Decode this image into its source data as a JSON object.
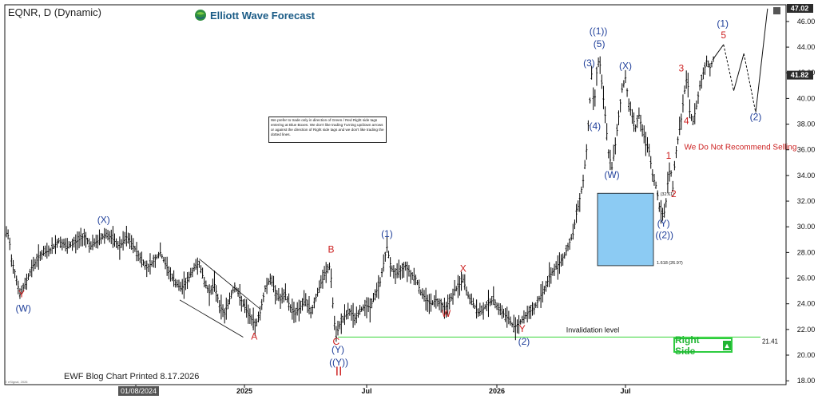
{
  "header": {
    "ticker": "EQNR, D (Dynamic)",
    "brand": "Elliott Wave Forecast"
  },
  "note": "We prefer to trade only in direction of Green / Red Right side tags entering at Blue Boxes. We don't like trading Turning up/down arrows or against the direction of Right side tags and we don't like trading the dotted lines.",
  "right_side_label": "Right Side",
  "printed": "EWF Blog Chart Printed 8.17.2026",
  "esignal": "© eSignal, 2026",
  "date_badge": "01/08/2024",
  "colors": {
    "blue_label": "#1f3f9a",
    "red_label": "#cc1f1f",
    "green_line": "#3ad63a",
    "blue_box": "#8ccbf3",
    "candle": "#000000"
  },
  "chart_data": {
    "type": "line",
    "title": "EQNR, D (Dynamic)",
    "xlabel": "",
    "ylabel": "",
    "x_ticks": [
      "Jul",
      "2025",
      "Jul",
      "2026",
      "Jul"
    ],
    "y_ticks": [
      18.0,
      20.0,
      22.0,
      24.0,
      26.0,
      28.0,
      30.0,
      32.0,
      34.0,
      36.0,
      38.0,
      40.0,
      42.0,
      44.0,
      46.0
    ],
    "ylim": [
      17.7,
      47.3
    ],
    "price_tags": [
      {
        "value": 47.02,
        "label": "47.02"
      },
      {
        "value": 41.82,
        "label": "41.82"
      }
    ],
    "series": [
      {
        "values": [
          {
            "t": 0,
            "v": 29.5
          },
          {
            "t": 3,
            "v": 29.2
          },
          {
            "t": 6,
            "v": 27.5
          },
          {
            "t": 10,
            "v": 26.5
          },
          {
            "t": 16,
            "v": 24.7
          },
          {
            "t": 22,
            "v": 25.5
          },
          {
            "t": 30,
            "v": 26.8
          },
          {
            "t": 40,
            "v": 27.8
          },
          {
            "t": 52,
            "v": 28.2
          },
          {
            "t": 62,
            "v": 28.9
          },
          {
            "t": 72,
            "v": 28.4
          },
          {
            "t": 82,
            "v": 28.8
          },
          {
            "t": 92,
            "v": 29.3
          },
          {
            "t": 100,
            "v": 28.5
          },
          {
            "t": 110,
            "v": 29.0
          },
          {
            "t": 118,
            "v": 29.5
          },
          {
            "t": 126,
            "v": 29.0
          },
          {
            "t": 134,
            "v": 28.4
          },
          {
            "t": 142,
            "v": 29.2
          },
          {
            "t": 150,
            "v": 28.5
          },
          {
            "t": 158,
            "v": 27.6
          },
          {
            "t": 166,
            "v": 26.8
          },
          {
            "t": 174,
            "v": 27.3
          },
          {
            "t": 182,
            "v": 28.0
          },
          {
            "t": 190,
            "v": 26.8
          },
          {
            "t": 198,
            "v": 25.8
          },
          {
            "t": 206,
            "v": 25.2
          },
          {
            "t": 214,
            "v": 25.8
          },
          {
            "t": 222,
            "v": 26.8
          },
          {
            "t": 228,
            "v": 27.2
          },
          {
            "t": 234,
            "v": 25.7
          },
          {
            "t": 240,
            "v": 24.9
          },
          {
            "t": 246,
            "v": 25.5
          },
          {
            "t": 252,
            "v": 23.9
          },
          {
            "t": 258,
            "v": 23.2
          },
          {
            "t": 264,
            "v": 24.4
          },
          {
            "t": 270,
            "v": 25.4
          },
          {
            "t": 276,
            "v": 24.5
          },
          {
            "t": 282,
            "v": 23.7
          },
          {
            "t": 288,
            "v": 23.0
          },
          {
            "t": 294,
            "v": 22.3
          },
          {
            "t": 300,
            "v": 23.3
          },
          {
            "t": 306,
            "v": 25.2
          },
          {
            "t": 312,
            "v": 26.0
          },
          {
            "t": 318,
            "v": 25.0
          },
          {
            "t": 324,
            "v": 24.3
          },
          {
            "t": 330,
            "v": 24.7
          },
          {
            "t": 336,
            "v": 23.7
          },
          {
            "t": 342,
            "v": 23.3
          },
          {
            "t": 348,
            "v": 23.8
          },
          {
            "t": 354,
            "v": 24.3
          },
          {
            "t": 360,
            "v": 23.3
          },
          {
            "t": 366,
            "v": 24.5
          },
          {
            "t": 372,
            "v": 25.6
          },
          {
            "t": 378,
            "v": 26.5
          },
          {
            "t": 383,
            "v": 27.0
          },
          {
            "t": 387,
            "v": 23.0
          },
          {
            "t": 390,
            "v": 21.4
          },
          {
            "t": 394,
            "v": 22.4
          },
          {
            "t": 400,
            "v": 23.0
          },
          {
            "t": 406,
            "v": 23.4
          },
          {
            "t": 412,
            "v": 22.9
          },
          {
            "t": 418,
            "v": 23.4
          },
          {
            "t": 424,
            "v": 23.9
          },
          {
            "t": 430,
            "v": 23.7
          },
          {
            "t": 436,
            "v": 24.7
          },
          {
            "t": 442,
            "v": 25.7
          },
          {
            "t": 447,
            "v": 27.5
          },
          {
            "t": 450,
            "v": 28.4
          },
          {
            "t": 455,
            "v": 26.8
          },
          {
            "t": 460,
            "v": 26.3
          },
          {
            "t": 466,
            "v": 26.6
          },
          {
            "t": 472,
            "v": 27.0
          },
          {
            "t": 478,
            "v": 26.3
          },
          {
            "t": 484,
            "v": 26.0
          },
          {
            "t": 490,
            "v": 24.9
          },
          {
            "t": 496,
            "v": 24.4
          },
          {
            "t": 502,
            "v": 24.0
          },
          {
            "t": 508,
            "v": 24.3
          },
          {
            "t": 514,
            "v": 24.0
          },
          {
            "t": 518,
            "v": 23.6
          },
          {
            "t": 524,
            "v": 24.2
          },
          {
            "t": 530,
            "v": 25.0
          },
          {
            "t": 536,
            "v": 25.5
          },
          {
            "t": 540,
            "v": 25.9
          },
          {
            "t": 546,
            "v": 24.6
          },
          {
            "t": 552,
            "v": 24.0
          },
          {
            "t": 558,
            "v": 23.3
          },
          {
            "t": 564,
            "v": 23.6
          },
          {
            "t": 570,
            "v": 24.1
          },
          {
            "t": 576,
            "v": 24.3
          },
          {
            "t": 582,
            "v": 23.7
          },
          {
            "t": 588,
            "v": 23.2
          },
          {
            "t": 594,
            "v": 22.8
          },
          {
            "t": 600,
            "v": 22.2
          },
          {
            "t": 606,
            "v": 22.5
          },
          {
            "t": 612,
            "v": 22.9
          },
          {
            "t": 618,
            "v": 23.4
          },
          {
            "t": 624,
            "v": 23.6
          },
          {
            "t": 630,
            "v": 24.4
          },
          {
            "t": 636,
            "v": 25.1
          },
          {
            "t": 642,
            "v": 26.1
          },
          {
            "t": 648,
            "v": 26.7
          },
          {
            "t": 654,
            "v": 27.2
          },
          {
            "t": 660,
            "v": 27.8
          },
          {
            "t": 666,
            "v": 28.8
          },
          {
            "t": 670,
            "v": 29.4
          },
          {
            "t": 674,
            "v": 31.0
          },
          {
            "t": 678,
            "v": 32.2
          },
          {
            "t": 682,
            "v": 33.6
          },
          {
            "t": 686,
            "v": 36.0
          },
          {
            "t": 689,
            "v": 38.8
          },
          {
            "t": 692,
            "v": 41.9
          },
          {
            "t": 695,
            "v": 39.2
          },
          {
            "t": 698,
            "v": 42.0
          },
          {
            "t": 701,
            "v": 43.3
          },
          {
            "t": 704,
            "v": 41.2
          },
          {
            "t": 708,
            "v": 38.7
          },
          {
            "t": 712,
            "v": 35.8
          },
          {
            "t": 716,
            "v": 34.6
          },
          {
            "t": 720,
            "v": 36.4
          },
          {
            "t": 724,
            "v": 38.6
          },
          {
            "t": 728,
            "v": 40.7
          },
          {
            "t": 732,
            "v": 41.6
          },
          {
            "t": 736,
            "v": 39.6
          },
          {
            "t": 740,
            "v": 38.6
          },
          {
            "t": 744,
            "v": 37.8
          },
          {
            "t": 748,
            "v": 38.7
          },
          {
            "t": 752,
            "v": 37.6
          },
          {
            "t": 756,
            "v": 36.4
          },
          {
            "t": 760,
            "v": 35.9
          },
          {
            "t": 764,
            "v": 34.0
          },
          {
            "t": 768,
            "v": 33.2
          },
          {
            "t": 772,
            "v": 31.6
          },
          {
            "t": 776,
            "v": 30.8
          },
          {
            "t": 779,
            "v": 31.3
          },
          {
            "t": 782,
            "v": 33.4
          },
          {
            "t": 785,
            "v": 34.8
          },
          {
            "t": 788,
            "v": 33.0
          },
          {
            "t": 791,
            "v": 35.5
          },
          {
            "t": 794,
            "v": 36.8
          },
          {
            "t": 798,
            "v": 38.4
          },
          {
            "t": 802,
            "v": 40.6
          },
          {
            "t": 805,
            "v": 41.9
          },
          {
            "t": 808,
            "v": 39.0
          },
          {
            "t": 812,
            "v": 38.2
          },
          {
            "t": 816,
            "v": 39.4
          },
          {
            "t": 820,
            "v": 41.0
          },
          {
            "t": 824,
            "v": 42.0
          },
          {
            "t": 828,
            "v": 42.9
          },
          {
            "t": 832,
            "v": 42.4
          },
          {
            "t": 836,
            "v": 43.1
          }
        ]
      }
    ],
    "projection": [
      {
        "t": 836,
        "v": 43.1
      },
      {
        "t": 848,
        "v": 44.2
      },
      {
        "t": 860,
        "v": 40.6
      },
      {
        "t": 872,
        "v": 43.5
      },
      {
        "t": 886,
        "v": 38.9
      },
      {
        "t": 900,
        "v": 47.0
      }
    ],
    "blue_box": {
      "from_value": 32.61,
      "to_value": 26.97,
      "label_top": "1 (32.61)",
      "label_bottom": "1.618 (26.97)"
    },
    "invalidation": {
      "value": 21.41,
      "label": "Invalidation level",
      "value_label": "21.41"
    },
    "channel": [
      {
        "p1": {
          "t": 228,
          "v": 27.5
        },
        "p2": {
          "t": 300,
          "v": 23.6
        }
      },
      {
        "p1": {
          "t": 205,
          "v": 24.3
        },
        "p2": {
          "t": 280,
          "v": 21.4
        }
      }
    ],
    "annotations": [
      {
        "id": "y-red-1",
        "text": "Y",
        "color": "red",
        "t": 18,
        "v": 24.5
      },
      {
        "id": "w-blue-1",
        "text": "(W)",
        "color": "blue",
        "t": 20,
        "v": 23.4
      },
      {
        "id": "x-blue-1",
        "text": "(X)",
        "color": "blue",
        "t": 115,
        "v": 30.3
      },
      {
        "id": "a-red",
        "text": "A",
        "color": "red",
        "t": 293,
        "v": 21.2
      },
      {
        "id": "b-red",
        "text": "B",
        "color": "red",
        "t": 384,
        "v": 28.0
      },
      {
        "id": "c-red",
        "text": "C",
        "color": "red",
        "t": 390,
        "v": 20.8
      },
      {
        "id": "y-blue-2",
        "text": "(Y)",
        "color": "blue",
        "t": 392,
        "v": 20.2
      },
      {
        "id": "yy-blue",
        "text": "((Y))",
        "color": "blue",
        "t": 393,
        "v": 19.2
      },
      {
        "id": "ii-red",
        "text": "II",
        "color": "red",
        "t": 393,
        "v": 18.4
      },
      {
        "id": "one-blue",
        "text": "(1)",
        "color": "blue",
        "t": 450,
        "v": 29.2
      },
      {
        "id": "x-red-2",
        "text": "X",
        "color": "red",
        "t": 540,
        "v": 26.5
      },
      {
        "id": "w-red-2",
        "text": "W",
        "color": "red",
        "t": 520,
        "v": 23.0
      },
      {
        "id": "y-red-3",
        "text": "Y",
        "color": "red",
        "t": 610,
        "v": 21.8
      },
      {
        "id": "two-blue",
        "text": "(2)",
        "color": "blue",
        "t": 612,
        "v": 20.8
      },
      {
        "id": "three-blue",
        "text": "(3)",
        "color": "blue",
        "t": 689,
        "v": 42.5
      },
      {
        "id": "four-blue",
        "text": "(4)",
        "color": "blue",
        "t": 696,
        "v": 37.6
      },
      {
        "id": "five-blue",
        "text": "(5)",
        "color": "blue",
        "t": 701,
        "v": 44.0
      },
      {
        "id": "one-one-blue",
        "text": "((1))",
        "color": "blue",
        "t": 700,
        "v": 45.0
      },
      {
        "id": "w-blue-3",
        "text": "(W)",
        "color": "blue",
        "t": 716,
        "v": 33.8
      },
      {
        "id": "x-blue-3",
        "text": "(X)",
        "color": "blue",
        "t": 732,
        "v": 42.3
      },
      {
        "id": "one-red",
        "text": "1",
        "color": "red",
        "t": 783,
        "v": 35.3
      },
      {
        "id": "two-red",
        "text": "2",
        "color": "red",
        "t": 789,
        "v": 32.3
      },
      {
        "id": "y-blue-4",
        "text": "(Y)",
        "color": "blue",
        "t": 777,
        "v": 30.0
      },
      {
        "id": "two-two-blue",
        "text": "((2))",
        "color": "blue",
        "t": 778,
        "v": 29.1
      },
      {
        "id": "three-red",
        "text": "3",
        "color": "red",
        "t": 798,
        "v": 42.1
      },
      {
        "id": "four-red",
        "text": "4",
        "color": "red",
        "t": 804,
        "v": 38.0
      },
      {
        "id": "five-red",
        "text": "5",
        "color": "red",
        "t": 848,
        "v": 44.7
      },
      {
        "id": "one-blue-top",
        "text": "(1)",
        "color": "blue",
        "t": 847,
        "v": 45.6
      },
      {
        "id": "two-blue-top",
        "text": "(2)",
        "color": "blue",
        "t": 886,
        "v": 38.3
      }
    ],
    "callouts": [
      {
        "text": "We Do Not Recommend Selling",
        "t": 868,
        "v": 36.0
      }
    ]
  }
}
